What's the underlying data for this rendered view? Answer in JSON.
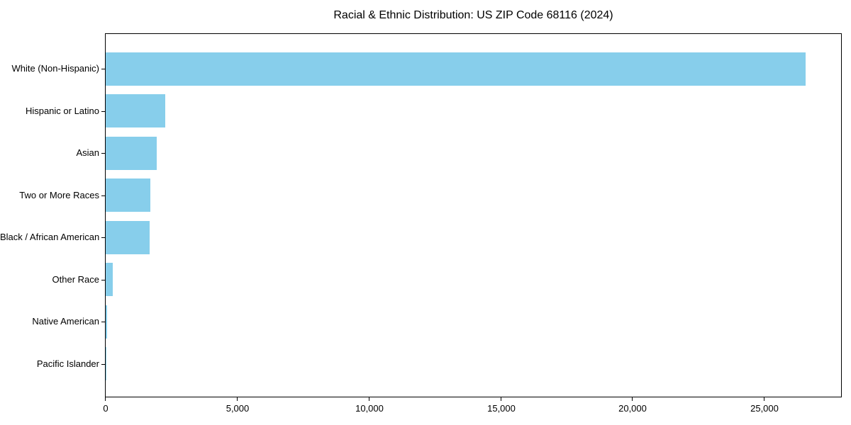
{
  "chart_data": {
    "type": "bar",
    "orientation": "horizontal",
    "title": "Racial & Ethnic Distribution: US ZIP Code 68116 (2024)",
    "xlabel": "",
    "ylabel": "",
    "categories": [
      "White (Non-Hispanic)",
      "Hispanic or Latino",
      "Asian",
      "Two or More Races",
      "Black / African American",
      "Other Race",
      "Native American",
      "Pacific Islander"
    ],
    "values": [
      26560,
      2250,
      1950,
      1705,
      1680,
      270,
      50,
      15
    ],
    "bar_color": "#87CEEB",
    "axis_color": "#000000",
    "text_color": "#000000",
    "background_color": "#ffffff",
    "xlim": [
      0,
      27900
    ],
    "x_ticks": [
      0,
      5000,
      10000,
      15000,
      20000,
      25000
    ],
    "x_tick_labels": [
      "0",
      "5,000",
      "10,000",
      "15,000",
      "20,000",
      "25,000"
    ],
    "grid": false,
    "legend": null
  }
}
